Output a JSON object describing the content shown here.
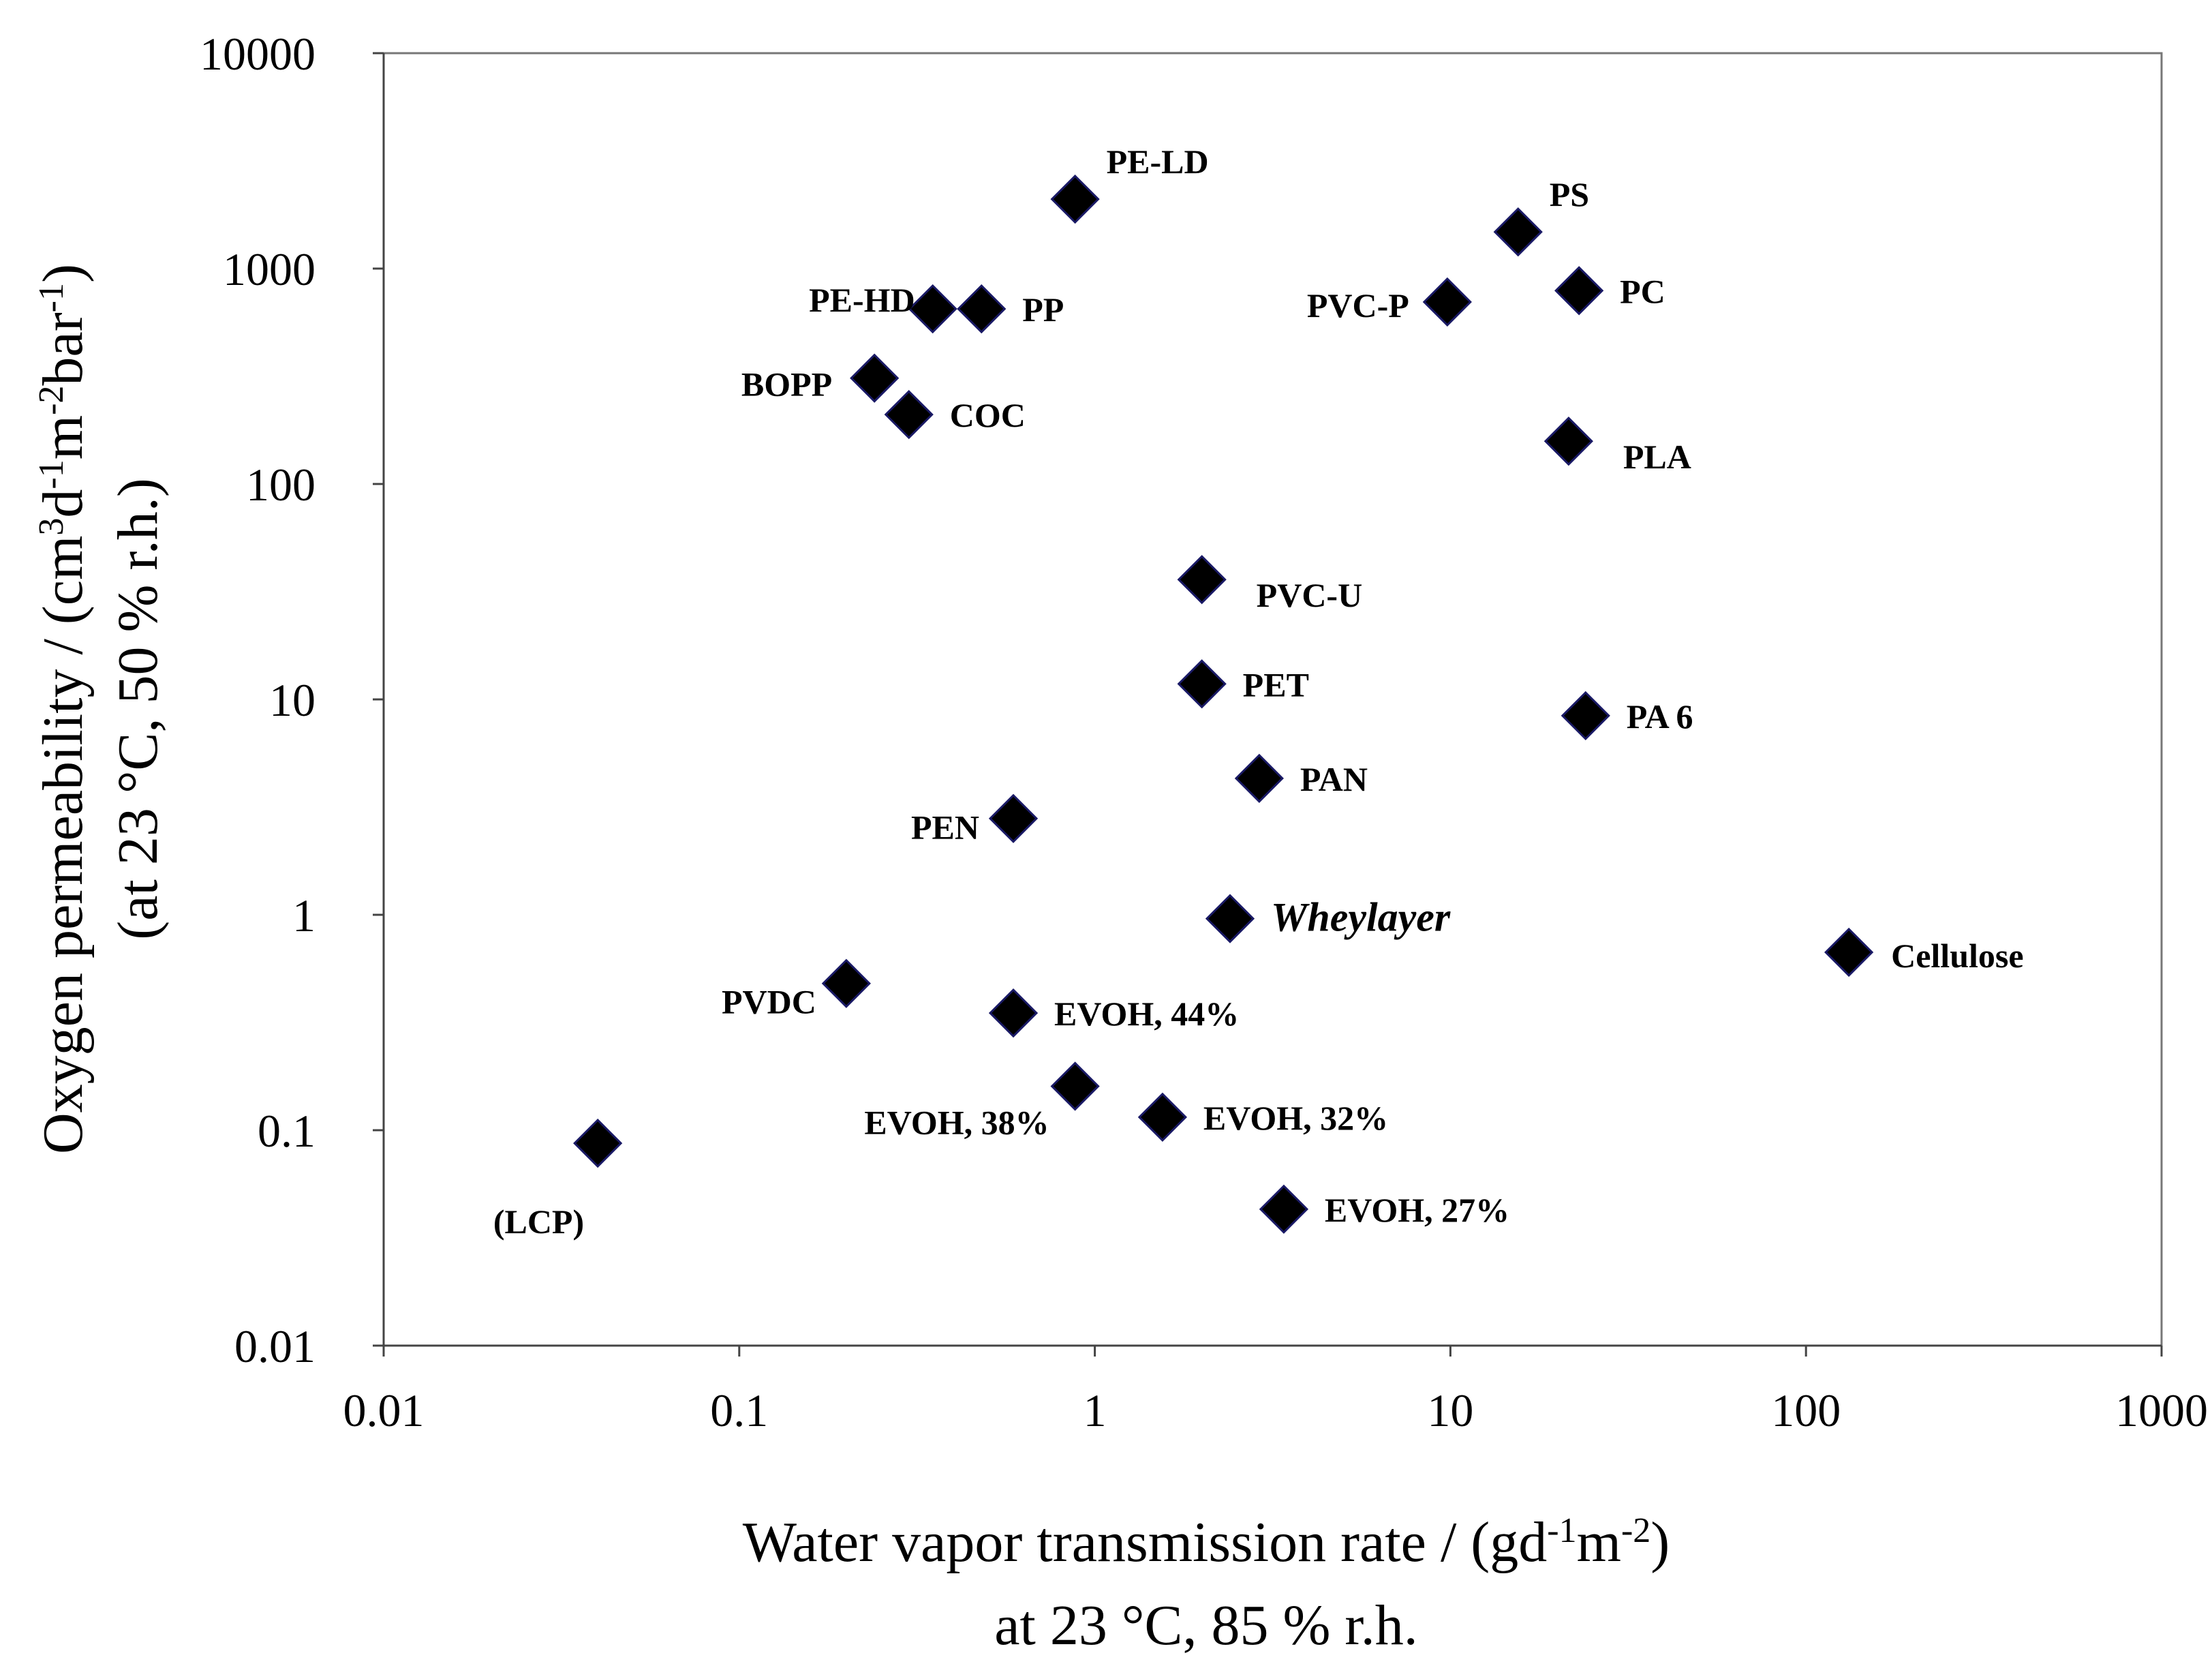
{
  "chart_data": {
    "type": "scatter",
    "title": "",
    "xscale": "log",
    "yscale": "log",
    "xlim": [
      0.01,
      1000
    ],
    "ylim": [
      0.01,
      10000
    ],
    "xlabel": {
      "line1": "Water vapor transmission rate / (gd",
      "sup1": "-1",
      "line1b": "m",
      "sup2": "-2",
      "line1c": ")",
      "line2": "at 23 °C, 85 % r.h."
    },
    "ylabel": {
      "line1a": "Oxygen permeability / (cm",
      "sup1": "3",
      "line1b": "d",
      "sup2": "-1",
      "line1c": "m",
      "sup3": "-2",
      "line1d": "bar",
      "sup4": "-1",
      "line1e": ")",
      "line2": "(at 23 °C, 50 % r.h.)"
    },
    "x_ticks": [
      "0.01",
      "0.1",
      "1",
      "10",
      "100",
      "1000"
    ],
    "y_ticks": [
      "0.01",
      "0.1",
      "1",
      "10",
      "100",
      "1000",
      "10000"
    ],
    "points": [
      {
        "label": "PE-LD",
        "x": 0.88,
        "y": 2100,
        "anchor": "ne"
      },
      {
        "label": "PS",
        "x": 15.5,
        "y": 1480,
        "anchor": "ne"
      },
      {
        "label": "PE-HD",
        "x": 0.35,
        "y": 650,
        "anchor": "w"
      },
      {
        "label": "PP",
        "x": 0.48,
        "y": 650,
        "anchor": "e"
      },
      {
        "label": "PVC-P",
        "x": 9.8,
        "y": 700,
        "anchor": "w"
      },
      {
        "label": "PC",
        "x": 23,
        "y": 790,
        "anchor": "e"
      },
      {
        "label": "BOPP",
        "x": 0.24,
        "y": 310,
        "anchor": "w"
      },
      {
        "label": "COC",
        "x": 0.3,
        "y": 210,
        "anchor": "e"
      },
      {
        "label": "PLA",
        "x": 21.5,
        "y": 158,
        "anchor": "se"
      },
      {
        "label": "PVC-U",
        "x": 2.0,
        "y": 36,
        "anchor": "se"
      },
      {
        "label": "PET",
        "x": 2.0,
        "y": 11.8,
        "anchor": "e"
      },
      {
        "label": "PA 6",
        "x": 24,
        "y": 8.4,
        "anchor": "e"
      },
      {
        "label": "PAN",
        "x": 2.9,
        "y": 4.3,
        "anchor": "e"
      },
      {
        "label": "PEN",
        "x": 0.59,
        "y": 2.8,
        "anchor": "w"
      },
      {
        "label": "Wheylayer",
        "x": 2.4,
        "y": 0.96,
        "anchor": "e",
        "italic": true
      },
      {
        "label": "Cellulose",
        "x": 132,
        "y": 0.67,
        "anchor": "e"
      },
      {
        "label": "PVDC",
        "x": 0.2,
        "y": 0.48,
        "anchor": "sw"
      },
      {
        "label": "EVOH, 44%",
        "x": 0.59,
        "y": 0.35,
        "anchor": "e"
      },
      {
        "label": "EVOH, 38%",
        "x": 0.88,
        "y": 0.16,
        "anchor": "sw"
      },
      {
        "label": "EVOH, 32%",
        "x": 1.55,
        "y": 0.115,
        "anchor": "e"
      },
      {
        "label": "(LCP)",
        "x": 0.04,
        "y": 0.087,
        "anchor": "sw"
      },
      {
        "label": "EVOH, 27%",
        "x": 3.4,
        "y": 0.043,
        "anchor": "e"
      }
    ]
  }
}
